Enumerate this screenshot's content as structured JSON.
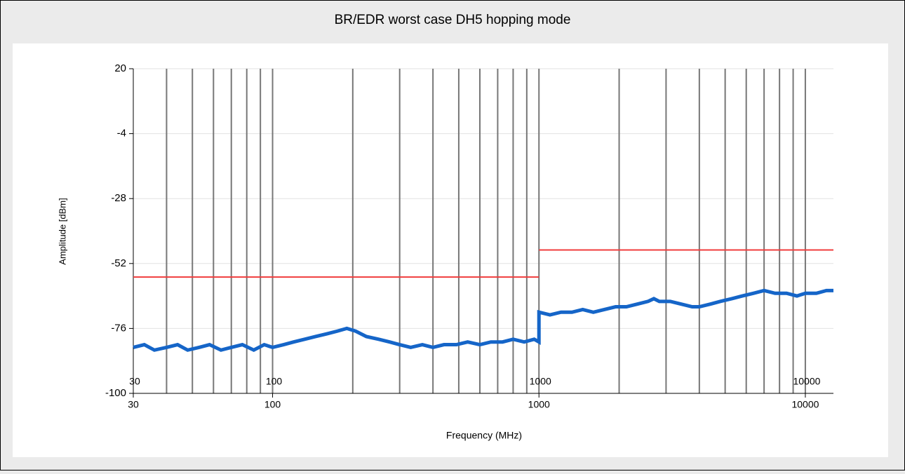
{
  "chart_data": {
    "type": "line",
    "title": "BR/EDR worst case DH5 hopping mode",
    "xlabel": "Frequency (MHz)",
    "ylabel": "Amplitude [dBm]",
    "log_x": true,
    "xlim": [
      30,
      12750
    ],
    "ylim": [
      -100,
      20
    ],
    "xticks": [
      30,
      100,
      1000,
      10000
    ],
    "yticks": [
      20,
      -4,
      -28,
      -52,
      -76,
      -100
    ],
    "xgrid": [
      40,
      50,
      60,
      70,
      80,
      90,
      100,
      200,
      300,
      400,
      500,
      600,
      700,
      800,
      900,
      1000,
      2000,
      3000,
      4000,
      5000,
      6000,
      7000,
      8000,
      9000,
      10000
    ],
    "range_labels": [
      {
        "value": 30,
        "label": "30"
      },
      {
        "value": 100,
        "label": "100"
      },
      {
        "value": 1000,
        "label": "1000"
      },
      {
        "value": 10000,
        "label": "10000"
      }
    ],
    "series": [
      {
        "color": "#1565c8",
        "x": [
          30,
          33,
          36,
          40,
          44,
          48,
          53,
          58,
          64,
          70,
          77,
          85,
          93,
          100,
          110,
          120,
          132,
          145,
          160,
          175,
          190,
          205,
          225,
          250,
          275,
          300,
          330,
          365,
          400,
          440,
          490,
          540,
          600,
          660,
          730,
          800,
          880,
          960,
          1000,
          1000,
          1100,
          1210,
          1330,
          1460,
          1600,
          1760,
          1940,
          2130,
          2340,
          2570,
          2700,
          2830,
          3110,
          3420,
          3760,
          4000,
          4400,
          4800,
          5300,
          5800,
          6400,
          7000,
          7700,
          8500,
          9300,
          10000,
          11000,
          12000,
          12750
        ],
        "values": [
          -83,
          -82,
          -84,
          -83,
          -82,
          -84,
          -83,
          -82,
          -84,
          -83,
          -82,
          -84,
          -82,
          -83,
          -82,
          -81,
          -80,
          -79,
          -78,
          -77,
          -76,
          -77,
          -79,
          -80,
          -81,
          -82,
          -83,
          -82,
          -83,
          -82,
          -82,
          -81,
          -82,
          -81,
          -81,
          -80,
          -81,
          -80,
          -81,
          -70,
          -71,
          -70,
          -70,
          -69,
          -70,
          -69,
          -68,
          -68,
          -67,
          -66,
          -65,
          -66,
          -66,
          -67,
          -68,
          -68,
          -67,
          -66,
          -65,
          -64,
          -63,
          -62,
          -63,
          -63,
          -64,
          -63,
          -63,
          -62,
          -62
        ]
      },
      {
        "color": "#f03c3c",
        "x": [
          30,
          1000
        ],
        "values": [
          -57,
          -57
        ]
      },
      {
        "color": "#f03c3c",
        "x": [
          1000,
          12750
        ],
        "values": [
          -47,
          -47
        ]
      }
    ]
  }
}
